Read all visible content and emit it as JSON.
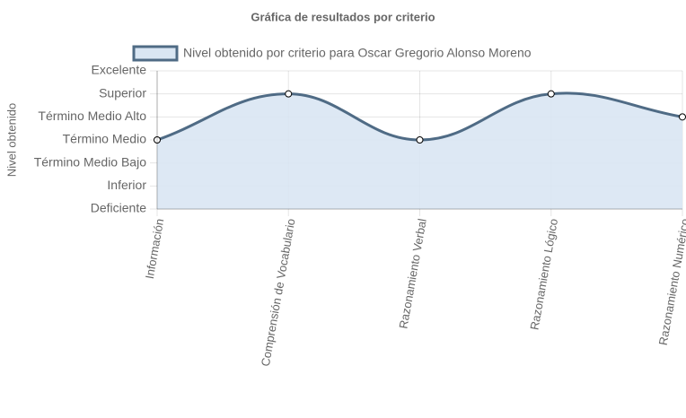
{
  "chart_data": {
    "type": "line",
    "title": "Gráfica de resultados por criterio",
    "y_label": "Nivel obtenido",
    "categories": [
      "Información",
      "Comprensión de Vocabulario",
      "Razonamiento Verbal",
      "Razonamiento Lógico",
      "Razonamiento Numérico"
    ],
    "series": [
      {
        "name": "Nivel obtenido por criterio para Oscar Gregorio Alonso Moreno",
        "color": "#4f6b85",
        "fill_color": "#d9e6f3",
        "values": [
          3,
          5,
          3,
          5,
          4
        ]
      }
    ],
    "ylim": [
      0,
      6
    ],
    "yticks": [
      {
        "value": 0,
        "label": "Deficiente"
      },
      {
        "value": 1,
        "label": "Inferior"
      },
      {
        "value": 2,
        "label": "Término Medio Bajo"
      },
      {
        "value": 3,
        "label": "Término Medio"
      },
      {
        "value": 4,
        "label": "Término Medio Alto"
      },
      {
        "value": 5,
        "label": "Superior"
      },
      {
        "value": 6,
        "label": "Excelente"
      }
    ],
    "grid": true,
    "legend": "top"
  }
}
